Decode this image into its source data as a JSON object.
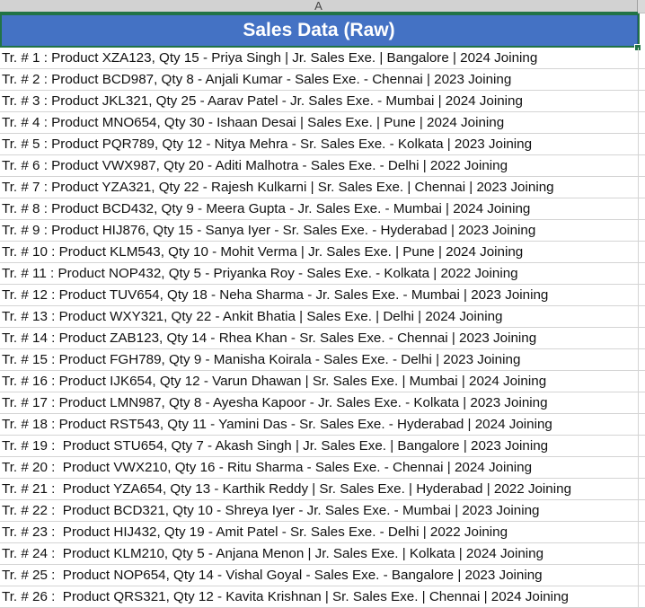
{
  "sheet": {
    "column_header": "A",
    "title": "Sales Data (Raw)",
    "rows": [
      "Tr. # 1 : Product XZA123, Qty 15 - Priya Singh | Jr. Sales Exe. | Bangalore | 2024 Joining",
      "Tr. # 2 : Product BCD987, Qty 8 - Anjali Kumar - Sales Exe. - Chennai | 2023 Joining",
      "Tr. # 3 : Product JKL321, Qty 25 - Aarav Patel - Jr. Sales Exe. - Mumbai | 2024 Joining",
      "Tr. # 4 : Product MNO654, Qty 30 - Ishaan Desai | Sales Exe. | Pune | 2024 Joining",
      "Tr. # 5 : Product PQR789, Qty 12 - Nitya Mehra - Sr. Sales Exe. - Kolkata | 2023 Joining",
      "Tr. # 6 : Product VWX987, Qty 20 - Aditi Malhotra - Sales Exe. - Delhi | 2022 Joining",
      "Tr. # 7 : Product YZA321, Qty 22 - Rajesh Kulkarni | Sr. Sales Exe. | Chennai | 2023 Joining",
      "Tr. # 8 : Product BCD432, Qty 9 - Meera Gupta - Jr. Sales Exe. - Mumbai | 2024 Joining",
      "Tr. # 9 : Product HIJ876, Qty 15 - Sanya Iyer - Sr. Sales Exe. - Hyderabad | 2023 Joining",
      "Tr. # 10 : Product KLM543, Qty 10 - Mohit Verma | Jr. Sales Exe. | Pune | 2024 Joining",
      "Tr. # 11 : Product NOP432, Qty 5 - Priyanka Roy - Sales Exe. - Kolkata | 2022 Joining",
      "Tr. # 12 : Product TUV654, Qty 18 - Neha Sharma - Jr. Sales Exe. - Mumbai | 2023 Joining",
      "Tr. # 13 : Product WXY321, Qty 22 - Ankit Bhatia | Sales Exe. | Delhi | 2024 Joining",
      "Tr. # 14 : Product ZAB123, Qty 14 - Rhea Khan - Sr. Sales Exe. - Chennai | 2023 Joining",
      "Tr. # 15 : Product FGH789, Qty 9 - Manisha Koirala - Sales Exe. - Delhi | 2023 Joining",
      "Tr. # 16 : Product IJK654, Qty 12 - Varun Dhawan | Sr. Sales Exe. | Mumbai | 2024 Joining",
      "Tr. # 17 : Product LMN987, Qty 8 - Ayesha Kapoor - Jr. Sales Exe. - Kolkata | 2023 Joining",
      "Tr. # 18 : Product RST543, Qty 11 - Yamini Das - Sr. Sales Exe. - Hyderabad | 2024 Joining",
      "Tr. # 19 :  Product STU654, Qty 7 - Akash Singh | Jr. Sales Exe. | Bangalore | 2023 Joining",
      "Tr. # 20 :  Product VWX210, Qty 16 - Ritu Sharma - Sales Exe. - Chennai | 2024 Joining",
      "Tr. # 21 :  Product YZA654, Qty 13 - Karthik Reddy | Sr. Sales Exe. | Hyderabad | 2022 Joining",
      "Tr. # 22 :  Product BCD321, Qty 10 - Shreya Iyer - Jr. Sales Exe. - Mumbai | 2023 Joining",
      "Tr. # 23 :  Product HIJ432, Qty 19 - Amit Patel - Sr. Sales Exe. - Delhi | 2022 Joining",
      "Tr. # 24 :  Product KLM210, Qty 5 - Anjana Menon | Jr. Sales Exe. | Kolkata | 2024 Joining",
      "Tr. # 25 :  Product NOP654, Qty 14 - Vishal Goyal - Sales Exe. - Bangalore | 2023 Joining",
      "Tr. # 26 :  Product QRS321, Qty 12 - Kavita Krishnan | Sr. Sales Exe. | Chennai | 2024 Joining"
    ]
  },
  "colors": {
    "title_fill": "#4472c4",
    "title_text": "#ffffff",
    "selection": "#217346",
    "gridline": "#d4d4d4"
  }
}
